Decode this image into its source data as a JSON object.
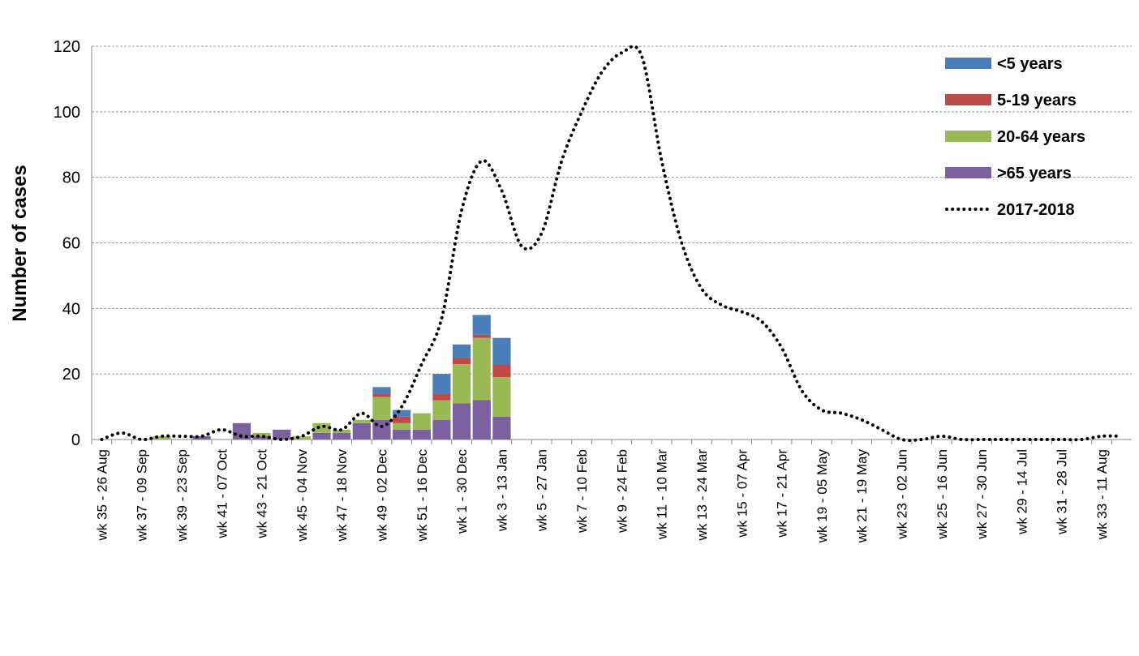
{
  "chart_data": {
    "type": "bar",
    "y_label": "Number of cases",
    "categories": [
      "wk 35 - 26 Aug",
      null,
      "wk 37 - 09 Sep",
      null,
      "wk 39 - 23 Sep",
      null,
      "wk 41 - 07 Oct",
      null,
      "wk 43 - 21 Oct",
      null,
      "wk 45 - 04 Nov",
      null,
      "wk 47 - 18 Nov",
      null,
      "wk 49 - 02 Dec",
      null,
      "wk 51 - 16 Dec",
      null,
      "wk 1 - 30 Dec",
      null,
      "wk 3 - 13 Jan",
      null,
      "wk 5 - 27 Jan",
      null,
      "wk 7 - 10 Feb",
      null,
      "wk 9 - 24 Feb",
      null,
      "wk 11 - 10 Mar",
      null,
      "wk 13 - 24 Mar",
      null,
      "wk 15 - 07 Apr",
      null,
      "wk 17 - 21 Apr",
      null,
      "wk 19 - 05 May",
      null,
      "wk 21 - 19 May",
      null,
      "wk 23 - 02 Jun",
      null,
      "wk 25 - 16 Jun",
      null,
      "wk 27 - 30 Jun",
      null,
      "wk 29 - 14 Jul",
      null,
      "wk 31 - 28 Jul",
      null,
      "wk 33 - 11 Aug",
      null
    ],
    "series": [
      {
        "name": "<5 years",
        "color": "#4a7ebb",
        "values": [
          0,
          0,
          0,
          0,
          0,
          0,
          0,
          0,
          0,
          0,
          0,
          0,
          0,
          0,
          2,
          2,
          0,
          6,
          4,
          6,
          8,
          null,
          null,
          null,
          null,
          null,
          null,
          null,
          null,
          null,
          null,
          null,
          null,
          null,
          null,
          null,
          null,
          null,
          null,
          null,
          null,
          null,
          null,
          null,
          null,
          null,
          null,
          null,
          null,
          null,
          null,
          null
        ]
      },
      {
        "name": "5-19 years",
        "color": "#be4b48",
        "values": [
          0,
          0,
          0,
          0,
          0,
          0,
          0,
          0,
          0,
          0,
          0,
          0,
          0,
          0,
          1,
          2,
          0,
          2,
          2,
          1,
          4,
          null,
          null,
          null,
          null,
          null,
          null,
          null,
          null,
          null,
          null,
          null,
          null,
          null,
          null,
          null,
          null,
          null,
          null,
          null,
          null,
          null,
          null,
          null,
          null,
          null,
          null,
          null,
          null,
          null,
          null,
          null
        ]
      },
      {
        "name": "20-64 years",
        "color": "#98b954",
        "values": [
          0,
          0,
          0,
          1,
          0,
          0,
          0,
          0,
          1,
          0,
          1,
          3,
          1,
          1,
          7,
          2,
          5,
          6,
          12,
          19,
          12,
          null,
          null,
          null,
          null,
          null,
          null,
          null,
          null,
          null,
          null,
          null,
          null,
          null,
          null,
          null,
          null,
          null,
          null,
          null,
          null,
          null,
          null,
          null,
          null,
          null,
          null,
          null,
          null,
          null,
          null,
          null
        ]
      },
      {
        "name": ">65 years",
        "color": "#7d60a0",
        "values": [
          0,
          0,
          0,
          0,
          0,
          1,
          0,
          5,
          1,
          3,
          0,
          2,
          2,
          5,
          6,
          3,
          3,
          6,
          11,
          12,
          7,
          null,
          null,
          null,
          null,
          null,
          null,
          null,
          null,
          null,
          null,
          null,
          null,
          null,
          null,
          null,
          null,
          null,
          null,
          null,
          null,
          null,
          null,
          null,
          null,
          null,
          null,
          null,
          null,
          null,
          null,
          null
        ]
      },
      {
        "name": "2017-2018",
        "type": "line",
        "color": "#000000",
        "values": [
          0,
          2,
          0,
          1,
          1,
          1,
          3,
          1,
          1,
          0,
          1,
          4,
          3,
          8,
          4,
          10,
          23,
          37,
          70,
          85,
          76,
          59,
          63,
          85,
          100,
          112,
          118,
          117,
          85,
          60,
          46,
          41,
          39,
          36,
          28,
          15,
          9,
          8,
          6,
          3,
          0,
          0,
          1,
          0,
          0,
          0,
          0,
          0,
          0,
          0,
          1,
          1
        ]
      }
    ],
    "ylim": [
      0,
      120
    ],
    "yticks": [
      0,
      20,
      40,
      60,
      80,
      100,
      120
    ],
    "grid": true,
    "legend": "upper right"
  }
}
